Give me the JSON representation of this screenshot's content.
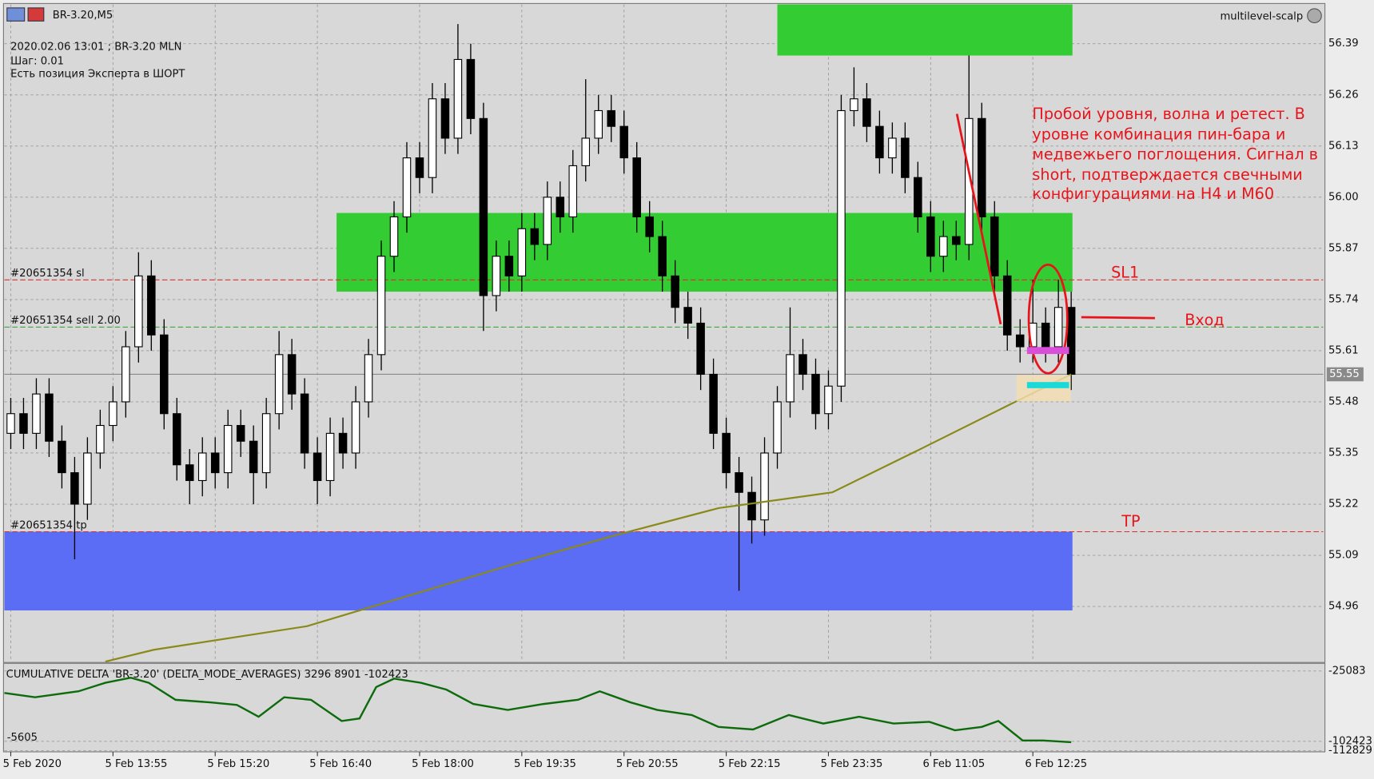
{
  "header": {
    "expert": "multilevel-scalp",
    "info": [
      "2020.02.06 13:01 ; BR-3.20 MLN",
      "Шаг: 0.01",
      "Есть позиция Эксперта в ШОРТ"
    ]
  },
  "chart_data": [
    {
      "type": "candlestick",
      "title": "BR-3.20,M5",
      "categories": [
        "5 Feb 2020",
        null,
        null,
        null,
        null,
        null,
        null,
        null,
        "5 Feb 13:55",
        null,
        null,
        null,
        null,
        null,
        null,
        null,
        "5 Feb 15:20",
        null,
        null,
        null,
        null,
        null,
        null,
        null,
        "5 Feb 16:40",
        null,
        null,
        null,
        null,
        null,
        null,
        null,
        "5 Feb 18:00",
        null,
        null,
        null,
        null,
        null,
        null,
        null,
        "5 Feb 19:35",
        null,
        null,
        null,
        null,
        null,
        null,
        null,
        "5 Feb 20:55",
        null,
        null,
        null,
        null,
        null,
        null,
        null,
        "5 Feb 22:15",
        null,
        null,
        null,
        null,
        null,
        null,
        null,
        "5 Feb 23:35",
        null,
        null,
        null,
        null,
        null,
        null,
        null,
        "6 Feb 11:05",
        null,
        null,
        null,
        null,
        null,
        null,
        null,
        "6 Feb 12:25",
        null,
        null,
        null
      ],
      "open": [
        55.4,
        55.45,
        55.4,
        55.5,
        55.38,
        55.3,
        55.22,
        55.35,
        55.42,
        55.48,
        55.62,
        55.8,
        55.65,
        55.45,
        55.32,
        55.28,
        55.35,
        55.3,
        55.42,
        55.38,
        55.3,
        55.45,
        55.6,
        55.5,
        55.35,
        55.28,
        55.4,
        55.35,
        55.48,
        55.6,
        55.85,
        55.95,
        56.1,
        56.05,
        56.25,
        56.15,
        56.35,
        56.2,
        55.75,
        55.85,
        55.8,
        55.92,
        55.88,
        56.0,
        55.95,
        56.08,
        56.15,
        56.22,
        56.18,
        56.1,
        55.95,
        55.9,
        55.8,
        55.72,
        55.68,
        55.55,
        55.4,
        55.3,
        55.25,
        55.18,
        55.35,
        55.48,
        55.6,
        55.55,
        55.45,
        55.52,
        56.22,
        56.25,
        56.18,
        56.1,
        56.15,
        56.05,
        55.95,
        55.85,
        55.9,
        55.88,
        56.2,
        55.95,
        55.8,
        55.65,
        55.62,
        55.68,
        55.62,
        55.72
      ],
      "high": [
        55.49,
        55.49,
        55.54,
        55.54,
        55.42,
        55.34,
        55.39,
        55.46,
        55.52,
        55.66,
        55.86,
        55.84,
        55.69,
        55.49,
        55.36,
        55.39,
        55.39,
        55.46,
        55.46,
        55.42,
        55.49,
        55.66,
        55.64,
        55.54,
        55.39,
        55.44,
        55.44,
        55.52,
        55.64,
        55.89,
        55.99,
        56.14,
        56.14,
        56.29,
        56.29,
        56.44,
        56.39,
        56.24,
        55.89,
        55.89,
        55.96,
        55.96,
        56.04,
        56.04,
        56.12,
        56.3,
        56.26,
        56.26,
        56.22,
        56.14,
        55.99,
        55.94,
        55.84,
        55.76,
        55.72,
        55.59,
        55.44,
        55.34,
        55.29,
        55.39,
        55.52,
        55.72,
        55.64,
        55.59,
        55.56,
        56.26,
        56.33,
        56.29,
        56.22,
        56.19,
        56.19,
        56.09,
        55.99,
        55.94,
        55.94,
        56.36,
        56.24,
        55.99,
        55.84,
        55.69,
        55.79,
        55.72,
        55.79,
        55.76
      ],
      "low": [
        55.36,
        55.36,
        55.36,
        55.34,
        55.26,
        55.08,
        55.18,
        55.31,
        55.38,
        55.44,
        55.58,
        55.61,
        55.41,
        55.28,
        55.22,
        55.24,
        55.26,
        55.26,
        55.34,
        55.22,
        55.26,
        55.41,
        55.46,
        55.31,
        55.22,
        55.24,
        55.31,
        55.31,
        55.44,
        55.56,
        55.81,
        55.91,
        56.01,
        56.01,
        56.11,
        56.11,
        56.16,
        55.66,
        55.71,
        55.76,
        55.76,
        55.84,
        55.84,
        55.91,
        55.91,
        56.04,
        56.11,
        56.14,
        56.06,
        55.91,
        55.86,
        55.76,
        55.68,
        55.64,
        55.51,
        55.36,
        55.26,
        55.0,
        55.12,
        55.14,
        55.31,
        55.44,
        55.51,
        55.41,
        55.41,
        55.48,
        56.18,
        56.14,
        56.06,
        56.06,
        56.01,
        55.91,
        55.81,
        55.81,
        55.84,
        55.84,
        55.91,
        55.76,
        55.61,
        55.58,
        55.58,
        55.58,
        55.58,
        55.51
      ],
      "close": [
        55.45,
        55.4,
        55.5,
        55.38,
        55.3,
        55.22,
        55.35,
        55.42,
        55.48,
        55.62,
        55.8,
        55.65,
        55.45,
        55.32,
        55.28,
        55.35,
        55.3,
        55.42,
        55.38,
        55.3,
        55.45,
        55.6,
        55.5,
        55.35,
        55.28,
        55.4,
        55.35,
        55.48,
        55.6,
        55.85,
        55.95,
        56.1,
        56.05,
        56.25,
        56.15,
        56.35,
        56.2,
        55.75,
        55.85,
        55.8,
        55.92,
        55.88,
        56.0,
        55.95,
        56.08,
        56.15,
        56.22,
        56.18,
        56.1,
        55.95,
        55.9,
        55.8,
        55.72,
        55.68,
        55.55,
        55.4,
        55.3,
        55.25,
        55.18,
        55.35,
        55.48,
        55.6,
        55.55,
        55.45,
        55.52,
        56.22,
        56.25,
        56.18,
        56.1,
        56.15,
        56.05,
        55.95,
        55.85,
        55.9,
        55.88,
        56.2,
        55.95,
        55.8,
        55.65,
        55.62,
        55.68,
        55.62,
        55.72,
        55.55
      ],
      "up_color": "#ffffff",
      "down_color": "#000000",
      "ylim": [
        54.82,
        56.49
      ],
      "yticks": [
        54.96,
        55.09,
        55.22,
        55.35,
        55.48,
        55.61,
        55.74,
        55.87,
        {
          "value": 56,
          "label": "56.00"
        },
        56.13,
        56.26,
        56.39
      ],
      "grid": true,
      "last_price": 55.55,
      "ma": {
        "color": "#8a8a1a",
        "x": [
          7.4,
          11.2,
          23.2,
          31.4,
          39.6,
          47.2,
          55.4,
          64.3,
          71.2,
          78.0,
          83
        ],
        "values": [
          54.82,
          54.85,
          54.91,
          54.99,
          55.07,
          55.14,
          55.21,
          55.25,
          55.36,
          55.47,
          55.55
        ]
      },
      "zones": [
        {
          "color": "#33cc33",
          "from": 56.36,
          "to": 56.49,
          "start": 60,
          "end": 83.1
        },
        {
          "color": "#33cc33",
          "from": 55.76,
          "to": 55.96,
          "start": 25.5,
          "end": 83.1
        },
        {
          "color": "#5b6cf5",
          "from": 54.95,
          "to": 55.15,
          "start": -0.5,
          "end": 83.1
        }
      ],
      "orders": [
        {
          "label": "#20651354 sl",
          "value": 55.79,
          "color": "#d83030"
        },
        {
          "label": "#20651354 sell 2.00",
          "value": 55.67,
          "color": "#2fa02f"
        },
        {
          "label": "#20651354 tp",
          "value": 55.15,
          "color": "#d83030"
        }
      ],
      "note": [
        "Пробой уровня, волна и ретест. В",
        "уровне комбинация пин-бара и",
        "медвежьего поглощения. Сигнал в",
        "short, подтверждается свечными",
        "конфигурациями на H4 и M60"
      ],
      "marks": {
        "sl": "SL1",
        "entry": "Вход",
        "tp": "TP"
      }
    },
    {
      "type": "line",
      "title": "CUMULATIVE DELTA 'BR-3.20' (DELTA_MODE_AVERAGES) 3296 8901 -102423",
      "x": [
        -0.5,
        1.9,
        5.3,
        7.4,
        9.4,
        10.8,
        12.9,
        15.6,
        17.7,
        19.4,
        21.4,
        23.5,
        25.9,
        27.3,
        28.6,
        30.0,
        32.1,
        34.1,
        36.2,
        38.9,
        41.7,
        44.4,
        46.1,
        48.5,
        50.6,
        53.3,
        55.4,
        58.1,
        60.9,
        63.6,
        66.4,
        69.1,
        71.9,
        73.9,
        76.0,
        77.3,
        79.2,
        80.8,
        83
      ],
      "series": [
        {
          "color": "#0d6b0d",
          "values": [
            -49300,
            -54000,
            -47450,
            -38100,
            -32500,
            -38100,
            -56800,
            -59600,
            -62400,
            -75400,
            -54000,
            -56800,
            -80100,
            -77300,
            -42800,
            -33500,
            -38100,
            -45600,
            -61400,
            -67950,
            -61400,
            -56800,
            -47450,
            -59600,
            -67950,
            -73500,
            -86600,
            -89400,
            -73500,
            -82900,
            -75400,
            -82900,
            -81000,
            -90300,
            -86600,
            -80100,
            -101500,
            -101500,
            -103400
          ]
        }
      ],
      "ylim": [
        -114000,
        -16700
      ],
      "yticks": [
        -112829,
        -102423,
        -25083
      ],
      "annotation": "-5605"
    }
  ]
}
